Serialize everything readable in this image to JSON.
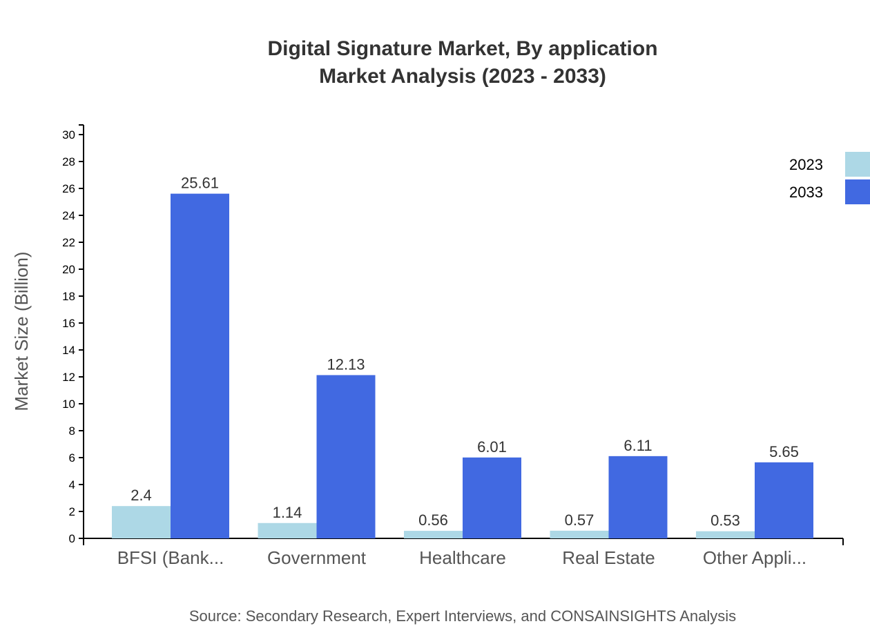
{
  "chart_data": {
    "type": "bar",
    "title": [
      "Digital Signature Market, By application",
      "Market Analysis (2023 - 2033)"
    ],
    "xlabel": "",
    "ylabel": "Market Size (Billion)",
    "ylim": [
      0,
      30
    ],
    "yticks": [
      0,
      2,
      4,
      6,
      8,
      10,
      12,
      14,
      16,
      18,
      20,
      22,
      24,
      26,
      28,
      30
    ],
    "categories": [
      "BFSI (Bank...",
      "Government",
      "Healthcare",
      "Real Estate",
      "Other Appli..."
    ],
    "series": [
      {
        "name": "2023",
        "color": "#add8e6",
        "values": [
          2.4,
          1.14,
          0.56,
          0.57,
          0.53
        ]
      },
      {
        "name": "2033",
        "color": "#4169e1",
        "values": [
          25.61,
          12.13,
          6.01,
          6.11,
          5.65
        ]
      }
    ],
    "legend": "top-right",
    "grid": false,
    "source": "Source: Secondary Research, Expert Interviews, and CONSAINSIGHTS Analysis"
  }
}
